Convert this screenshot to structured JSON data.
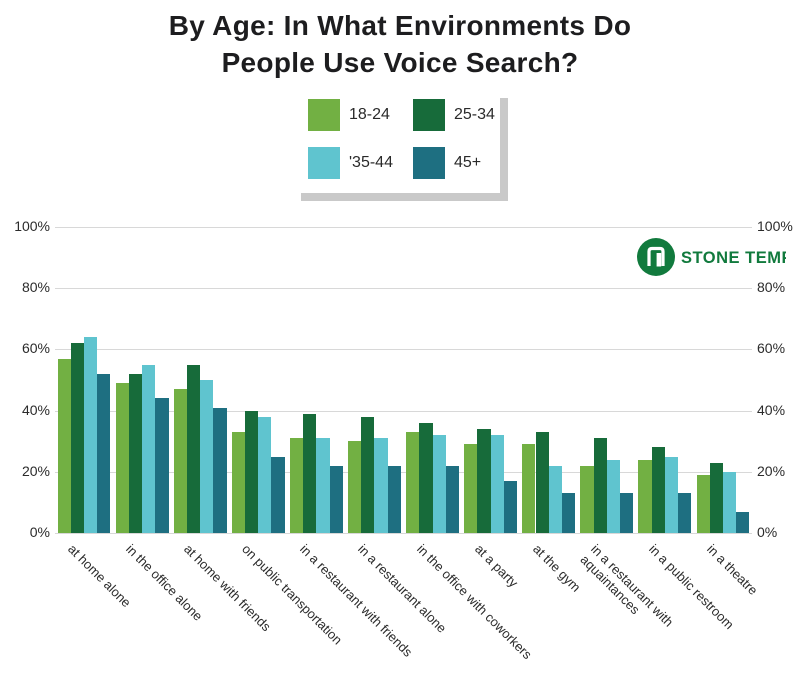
{
  "title": {
    "line1": "By Age: In What Environments Do",
    "line2": "People Use Voice Search?"
  },
  "logo": {
    "text": "STONE TEMPLE",
    "color": "#117a3d"
  },
  "legend": {
    "items": [
      {
        "label": "18-24",
        "color": "#72b043"
      },
      {
        "label": "25-34",
        "color": "#176b3a"
      },
      {
        "label": "'35-44",
        "color": "#5fc4cf"
      },
      {
        "label": "45+",
        "color": "#1e6f81"
      }
    ]
  },
  "chart_data": {
    "type": "bar",
    "title": "By Age: In What Environments Do People Use Voice Search?",
    "categories": [
      "at home alone",
      "in the office alone",
      "at home with friends",
      "on public transportation",
      "in a restaurant with friends",
      "in a restaurant alone",
      "in the office with coworkers",
      "at a party",
      "at the gym",
      "in a restaurant with\naquaintances",
      "in a public restroom",
      "in a theatre"
    ],
    "series": [
      {
        "name": "18-24",
        "color": "#72b043",
        "values": [
          57,
          49,
          47,
          33,
          31,
          30,
          33,
          29,
          29,
          22,
          24,
          19
        ]
      },
      {
        "name": "25-34",
        "color": "#176b3a",
        "values": [
          62,
          52,
          55,
          40,
          39,
          38,
          36,
          34,
          33,
          31,
          28,
          23
        ]
      },
      {
        "name": "35-44",
        "color": "#5fc4cf",
        "values": [
          64,
          55,
          50,
          38,
          31,
          31,
          32,
          32,
          22,
          24,
          25,
          20
        ]
      },
      {
        "name": "45+",
        "color": "#1e6f81",
        "values": [
          52,
          44,
          41,
          25,
          22,
          22,
          22,
          17,
          13,
          13,
          13,
          7
        ]
      }
    ],
    "ylim": [
      0,
      100
    ],
    "yticks": [
      "100%",
      "80%",
      "60%",
      "40%",
      "20%",
      "0%"
    ],
    "grid": true,
    "legend_position": "top-center",
    "xlabel": "",
    "ylabel": ""
  }
}
